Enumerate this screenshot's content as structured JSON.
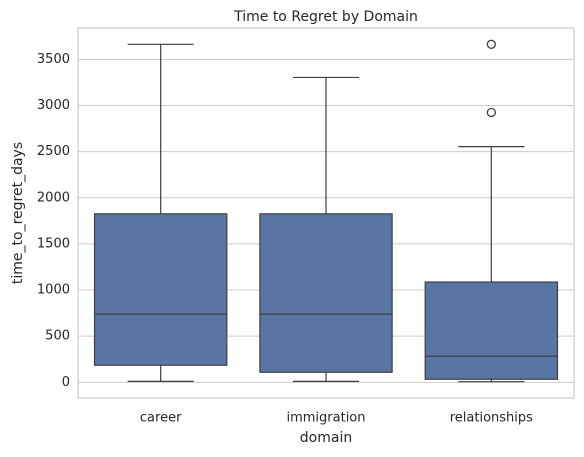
{
  "chart_data": {
    "type": "box",
    "title": "Time to Regret by Domain",
    "x_label": "domain",
    "y_label": "time_to_regret_days",
    "categories": [
      "career",
      "immigration",
      "relationships"
    ],
    "color": "#5975a4",
    "line_color": "#3f3f3f",
    "grid": true,
    "ylim": [
      -170,
      3840
    ],
    "yticks": [
      0,
      500,
      1000,
      1500,
      2000,
      2500,
      3000,
      3500
    ],
    "boxes": [
      {
        "min": 10,
        "q1": 185,
        "median": 739,
        "q3": 1826,
        "max": 3663,
        "outliers": []
      },
      {
        "min": 10,
        "q1": 109,
        "median": 739,
        "q3": 1826,
        "max": 3304,
        "outliers": []
      },
      {
        "min": 7,
        "q1": 33,
        "median": 283,
        "q3": 1087,
        "max": 2554,
        "outliers": [
          2924,
          3663
        ]
      }
    ]
  }
}
